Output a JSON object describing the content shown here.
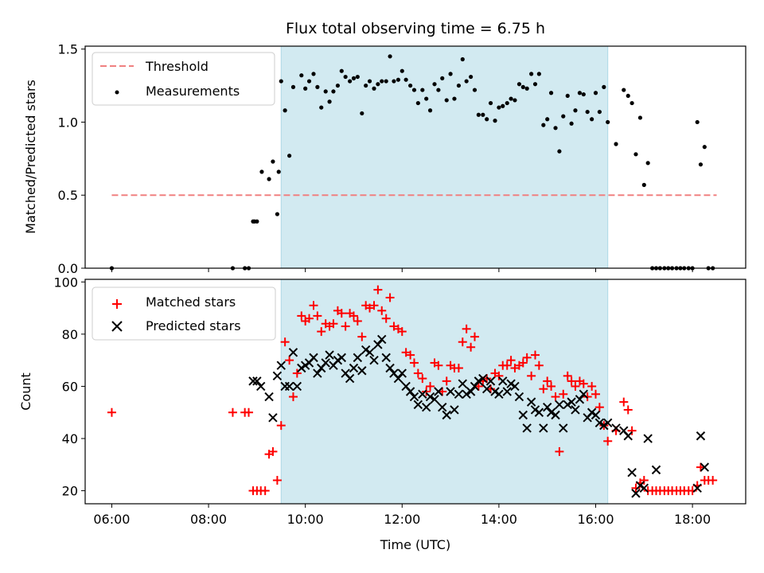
{
  "title": "Flux total observing time = 6.75 h",
  "chart_data": [
    {
      "type": "scatter",
      "panel": "top",
      "ylabel": "Matched/Predicted stars",
      "ylim": [
        0,
        1.52
      ],
      "yticks": [
        0.0,
        0.5,
        1.0,
        1.5
      ],
      "ytick_labels": [
        "0.0",
        "0.5",
        "1.0",
        "1.5"
      ],
      "threshold": {
        "name": "Threshold",
        "value": 0.5,
        "x_start": 6.0,
        "x_end": 18.5,
        "color": "#f08080"
      },
      "observing_window": {
        "start": 9.5,
        "end": 16.25,
        "color": "#add8e6"
      },
      "legend": {
        "position": "upper left",
        "entries": [
          "Threshold",
          "Measurements"
        ]
      },
      "series": [
        {
          "name": "Measurements",
          "color": "#000000",
          "marker": "dot",
          "x": [
            6.0,
            8.5,
            8.75,
            8.83,
            8.92,
            8.95,
            9.0,
            9.1,
            9.25,
            9.33,
            9.42,
            9.45,
            9.5,
            9.58,
            9.67,
            9.75,
            9.92,
            10.0,
            10.08,
            10.17,
            10.25,
            10.33,
            10.42,
            10.5,
            10.58,
            10.67,
            10.75,
            10.83,
            10.92,
            11.0,
            11.08,
            11.17,
            11.25,
            11.33,
            11.42,
            11.5,
            11.58,
            11.67,
            11.75,
            11.83,
            11.92,
            12.0,
            12.08,
            12.17,
            12.25,
            12.33,
            12.42,
            12.5,
            12.58,
            12.67,
            12.75,
            12.83,
            12.92,
            13.0,
            13.08,
            13.17,
            13.25,
            13.33,
            13.42,
            13.5,
            13.58,
            13.67,
            13.75,
            13.83,
            13.92,
            14.0,
            14.08,
            14.17,
            14.25,
            14.33,
            14.42,
            14.5,
            14.58,
            14.67,
            14.75,
            14.83,
            14.92,
            15.0,
            15.08,
            15.17,
            15.25,
            15.33,
            15.42,
            15.5,
            15.58,
            15.67,
            15.75,
            15.83,
            15.92,
            16.0,
            16.08,
            16.17,
            16.25,
            16.42,
            16.58,
            16.67,
            16.75,
            16.83,
            16.92,
            17.0,
            17.08,
            17.17,
            17.25,
            17.33,
            17.42,
            17.5,
            17.58,
            17.67,
            17.75,
            17.83,
            17.92,
            18.0,
            18.1,
            18.17,
            18.25,
            18.33,
            18.42
          ],
          "y": [
            0.0,
            0.0,
            0.0,
            0.0,
            0.32,
            0.32,
            0.32,
            0.66,
            0.61,
            0.73,
            0.37,
            0.66,
            1.28,
            1.08,
            0.77,
            1.24,
            1.32,
            1.23,
            1.28,
            1.33,
            1.24,
            1.1,
            1.21,
            1.14,
            1.21,
            1.25,
            1.35,
            1.31,
            1.28,
            1.3,
            1.31,
            1.06,
            1.25,
            1.28,
            1.23,
            1.26,
            1.28,
            1.28,
            1.45,
            1.28,
            1.29,
            1.35,
            1.29,
            1.25,
            1.22,
            1.13,
            1.22,
            1.16,
            1.08,
            1.26,
            1.22,
            1.3,
            1.15,
            1.33,
            1.16,
            1.25,
            1.43,
            1.28,
            1.31,
            1.22,
            1.05,
            1.05,
            1.02,
            1.13,
            1.01,
            1.1,
            1.11,
            1.13,
            1.16,
            1.15,
            1.26,
            1.24,
            1.23,
            1.33,
            1.26,
            1.33,
            0.98,
            1.02,
            1.2,
            0.96,
            0.8,
            1.04,
            1.18,
            0.99,
            1.08,
            1.2,
            1.19,
            1.07,
            1.02,
            1.2,
            1.07,
            1.24,
            1.0,
            0.85,
            1.22,
            1.18,
            1.13,
            0.78,
            1.03,
            0.57,
            0.72,
            0.0,
            0.0,
            0.0,
            0.0,
            0.0,
            0.0,
            0.0,
            0.0,
            0.0,
            0.0,
            0.0,
            1.0,
            0.71,
            0.83,
            0.0,
            0.0
          ]
        }
      ]
    },
    {
      "type": "scatter",
      "panel": "bottom",
      "xlabel": "Time (UTC)",
      "ylabel": "Count",
      "xlim": [
        5.45,
        19.1
      ],
      "ylim": [
        15,
        101
      ],
      "xticks": [
        6,
        8,
        10,
        12,
        14,
        16,
        18
      ],
      "xtick_labels": [
        "06:00",
        "08:00",
        "10:00",
        "12:00",
        "14:00",
        "16:00",
        "18:00"
      ],
      "yticks": [
        20,
        40,
        60,
        80,
        100
      ],
      "ytick_labels": [
        "20",
        "40",
        "60",
        "80",
        "100"
      ],
      "observing_window": {
        "start": 9.5,
        "end": 16.25,
        "color": "#add8e6"
      },
      "legend": {
        "position": "upper left",
        "entries": [
          "Matched stars",
          "Predicted stars"
        ]
      },
      "series": [
        {
          "name": "Matched stars",
          "color": "#ff0000",
          "marker": "plus",
          "x": [
            6.0,
            8.5,
            8.75,
            8.83,
            8.92,
            9.0,
            9.08,
            9.17,
            9.25,
            9.33,
            9.42,
            9.5,
            9.58,
            9.67,
            9.75,
            9.83,
            9.92,
            10.0,
            10.08,
            10.17,
            10.25,
            10.33,
            10.42,
            10.5,
            10.58,
            10.67,
            10.75,
            10.83,
            10.92,
            11.0,
            11.08,
            11.17,
            11.25,
            11.33,
            11.42,
            11.5,
            11.58,
            11.67,
            11.75,
            11.83,
            11.92,
            12.0,
            12.08,
            12.17,
            12.25,
            12.33,
            12.42,
            12.5,
            12.58,
            12.67,
            12.75,
            12.83,
            12.92,
            13.0,
            13.08,
            13.17,
            13.25,
            13.33,
            13.42,
            13.5,
            13.58,
            13.67,
            13.75,
            13.83,
            13.92,
            14.0,
            14.08,
            14.17,
            14.25,
            14.33,
            14.42,
            14.5,
            14.58,
            14.67,
            14.75,
            14.83,
            14.92,
            15.0,
            15.08,
            15.17,
            15.25,
            15.33,
            15.42,
            15.5,
            15.58,
            15.67,
            15.75,
            15.83,
            15.92,
            16.0,
            16.08,
            16.17,
            16.25,
            16.42,
            16.58,
            16.67,
            16.75,
            16.83,
            16.92,
            17.0,
            17.08,
            17.17,
            17.25,
            17.33,
            17.42,
            17.5,
            17.58,
            17.67,
            17.75,
            17.83,
            17.92,
            18.0,
            18.1,
            18.17,
            18.25,
            18.33,
            18.42
          ],
          "y": [
            50,
            50,
            50,
            50,
            20,
            20,
            20,
            20,
            34,
            35,
            24,
            45,
            77,
            70,
            56,
            65,
            87,
            85,
            86,
            91,
            87,
            81,
            84,
            83,
            84,
            89,
            88,
            83,
            88,
            87,
            85,
            79,
            91,
            90,
            91,
            97,
            89,
            86,
            94,
            83,
            82,
            81,
            73,
            72,
            69,
            65,
            63,
            58,
            60,
            69,
            68,
            58,
            62,
            68,
            67,
            67,
            77,
            82,
            75,
            79,
            60,
            62,
            63,
            59,
            65,
            64,
            68,
            68,
            70,
            67,
            68,
            69,
            71,
            64,
            72,
            68,
            59,
            62,
            60,
            56,
            35,
            57,
            64,
            62,
            60,
            62,
            61,
            56,
            60,
            57,
            52,
            45,
            39,
            43,
            54,
            51,
            43,
            21,
            23,
            24,
            20,
            20,
            20,
            20,
            20,
            20,
            20,
            20,
            20,
            20,
            20,
            20,
            22,
            29,
            24,
            24,
            24
          ]
        },
        {
          "name": "Predicted stars",
          "color": "#000000",
          "marker": "x",
          "x": [
            8.92,
            9.0,
            9.08,
            9.25,
            9.33,
            9.42,
            9.5,
            9.58,
            9.67,
            9.75,
            9.83,
            9.92,
            10.0,
            10.08,
            10.17,
            10.25,
            10.33,
            10.42,
            10.5,
            10.58,
            10.67,
            10.75,
            10.83,
            10.92,
            11.0,
            11.08,
            11.17,
            11.25,
            11.33,
            11.42,
            11.5,
            11.58,
            11.67,
            11.75,
            11.83,
            11.92,
            12.0,
            12.08,
            12.17,
            12.25,
            12.33,
            12.42,
            12.5,
            12.58,
            12.67,
            12.75,
            12.83,
            12.92,
            13.0,
            13.08,
            13.17,
            13.25,
            13.33,
            13.42,
            13.5,
            13.58,
            13.67,
            13.75,
            13.83,
            13.92,
            14.0,
            14.08,
            14.17,
            14.25,
            14.33,
            14.42,
            14.5,
            14.58,
            14.67,
            14.75,
            14.83,
            14.92,
            15.0,
            15.08,
            15.17,
            15.25,
            15.33,
            15.42,
            15.5,
            15.58,
            15.67,
            15.75,
            15.83,
            15.92,
            16.0,
            16.08,
            16.17,
            16.25,
            16.42,
            16.58,
            16.67,
            16.75,
            16.83,
            16.92,
            17.0,
            17.08,
            17.25,
            18.1,
            18.17,
            18.25
          ],
          "y": [
            62,
            62,
            60,
            56,
            48,
            64,
            68,
            60,
            60,
            73,
            60,
            67,
            68,
            69,
            71,
            65,
            67,
            69,
            72,
            68,
            70,
            71,
            65,
            63,
            67,
            71,
            66,
            74,
            73,
            70,
            76,
            78,
            71,
            67,
            65,
            63,
            65,
            60,
            58,
            56,
            53,
            57,
            52,
            56,
            55,
            58,
            52,
            49,
            58,
            51,
            57,
            61,
            57,
            58,
            60,
            62,
            63,
            59,
            62,
            58,
            57,
            62,
            58,
            61,
            60,
            56,
            49,
            44,
            54,
            51,
            50,
            44,
            52,
            50,
            49,
            53,
            44,
            53,
            54,
            51,
            55,
            57,
            48,
            50,
            49,
            46,
            45,
            46,
            44,
            43,
            41,
            27,
            19,
            22,
            21,
            40,
            28,
            21,
            41,
            29
          ]
        }
      ]
    }
  ]
}
